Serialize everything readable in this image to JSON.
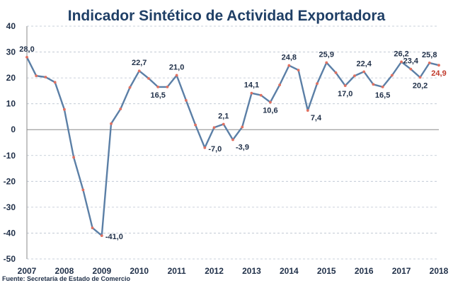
{
  "chart_data": {
    "type": "line",
    "title": "Indicador Sintético de Actividad Exportadora",
    "source": "Fuente: Secretaría de Estado de Comercio",
    "ylim": [
      -50,
      40
    ],
    "yticks": [
      "40",
      "30",
      "20",
      "10",
      "0",
      "-10",
      "-20",
      "-30",
      "-40",
      "-50"
    ],
    "ytick_values": [
      40,
      30,
      20,
      10,
      0,
      -10,
      -20,
      -30,
      -40,
      -50
    ],
    "xlim": [
      2007,
      2018
    ],
    "xticks": [
      "2007",
      "2008",
      "2009",
      "2010",
      "2011",
      "2012",
      "2013",
      "2014",
      "2015",
      "2016",
      "2017",
      "2018"
    ],
    "xtick_values": [
      2007,
      2008,
      2009,
      2010,
      2011,
      2012,
      2013,
      2014,
      2015,
      2016,
      2017,
      2018
    ],
    "grid": "horizontal",
    "line_color": "#5b7fa6",
    "marker_color": "#e07060",
    "highlight_color": "#c0392b",
    "series": [
      {
        "x": [
          2007.0,
          2007.25,
          2007.5,
          2007.75,
          2008.0,
          2008.25,
          2008.5,
          2008.75,
          2009.0,
          2009.25,
          2009.5,
          2009.75,
          2010.0,
          2010.25,
          2010.5,
          2010.75,
          2011.0,
          2011.25,
          2011.5,
          2011.75,
          2012.0,
          2012.25,
          2012.5,
          2012.75,
          2013.0,
          2013.25,
          2013.5,
          2013.75,
          2014.0,
          2014.25,
          2014.5,
          2014.75,
          2015.0,
          2015.25,
          2015.5,
          2015.75,
          2016.0,
          2016.25,
          2016.5,
          2016.75,
          2017.0,
          2017.25,
          2017.5,
          2017.75,
          2018.0
        ],
        "y": [
          28.0,
          20.8,
          20.3,
          18.3,
          7.8,
          -10.7,
          -23.3,
          -38.0,
          -41.0,
          2.3,
          8.0,
          16.3,
          22.7,
          19.8,
          16.5,
          16.5,
          21.0,
          11.3,
          1.8,
          -7.0,
          0.8,
          2.1,
          -3.9,
          1.0,
          14.1,
          13.3,
          10.6,
          17.3,
          24.8,
          23.0,
          7.4,
          17.8,
          25.9,
          22.0,
          17.0,
          20.8,
          22.4,
          17.5,
          16.5,
          21.0,
          26.2,
          23.4,
          20.2,
          25.8,
          24.9
        ]
      }
    ],
    "labels": [
      {
        "text": "28,0",
        "x": 2007.0,
        "y": 28.0,
        "pos": "above"
      },
      {
        "text": "-41,0",
        "x": 2009.0,
        "y": -41.0,
        "pos": "right"
      },
      {
        "text": "22,7",
        "x": 2010.0,
        "y": 22.7,
        "pos": "above"
      },
      {
        "text": "16,5",
        "x": 2010.5,
        "y": 16.5,
        "pos": "below"
      },
      {
        "text": "21,0",
        "x": 2011.0,
        "y": 21.0,
        "pos": "above"
      },
      {
        "text": "-7,0",
        "x": 2011.75,
        "y": -7.0,
        "pos": "right"
      },
      {
        "text": "2,1",
        "x": 2012.25,
        "y": 2.1,
        "pos": "above"
      },
      {
        "text": "-3,9",
        "x": 2012.5,
        "y": -3.9,
        "pos": "below-right"
      },
      {
        "text": "14,1",
        "x": 2013.0,
        "y": 14.1,
        "pos": "above"
      },
      {
        "text": "10,6",
        "x": 2013.5,
        "y": 10.6,
        "pos": "below"
      },
      {
        "text": "24,8",
        "x": 2014.0,
        "y": 24.8,
        "pos": "above"
      },
      {
        "text": "7,4",
        "x": 2014.5,
        "y": 7.4,
        "pos": "below-right"
      },
      {
        "text": "25,9",
        "x": 2015.0,
        "y": 25.9,
        "pos": "above"
      },
      {
        "text": "17,0",
        "x": 2015.5,
        "y": 17.0,
        "pos": "below"
      },
      {
        "text": "22,4",
        "x": 2016.0,
        "y": 22.4,
        "pos": "above"
      },
      {
        "text": "16,5",
        "x": 2016.5,
        "y": 16.5,
        "pos": "below"
      },
      {
        "text": "26,2",
        "x": 2017.0,
        "y": 26.2,
        "pos": "above"
      },
      {
        "text": "23,4",
        "x": 2017.25,
        "y": 23.4,
        "pos": "above"
      },
      {
        "text": "20,2",
        "x": 2017.5,
        "y": 20.2,
        "pos": "below"
      },
      {
        "text": "25,8",
        "x": 2017.75,
        "y": 25.8,
        "pos": "above"
      },
      {
        "text": "24,9",
        "x": 2018.0,
        "y": 24.9,
        "pos": "below",
        "highlight": true
      }
    ]
  }
}
